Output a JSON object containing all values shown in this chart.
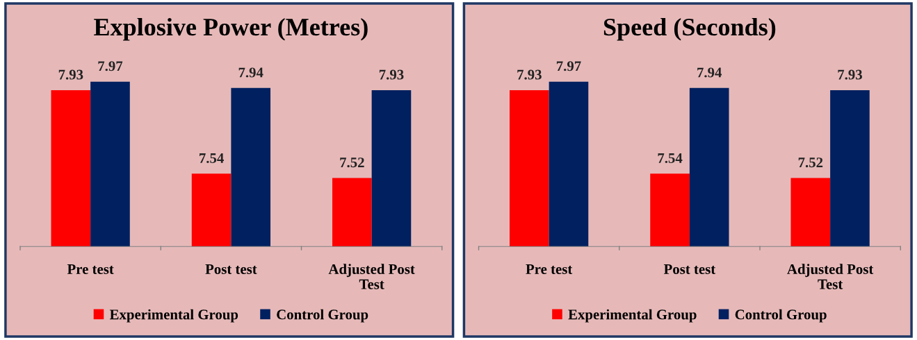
{
  "chart_data": [
    {
      "type": "bar",
      "title": "Explosive Power (Metres)",
      "categories": [
        "Pre test",
        "Post test",
        "Adjusted Post Test"
      ],
      "series": [
        {
          "name": "Experimental Group",
          "color": "#ff0000",
          "values": [
            7.93,
            7.54,
            7.52
          ]
        },
        {
          "name": "Control Group",
          "color": "#002060",
          "values": [
            7.97,
            7.94,
            7.93
          ]
        }
      ],
      "ylim": [
        7.2,
        7.97
      ],
      "tick_labels": "x",
      "data_labels": true,
      "legend": "bottom",
      "grid": false
    },
    {
      "type": "bar",
      "title": "Speed (Seconds)",
      "categories": [
        "Pre test",
        "Post test",
        "Adjusted Post Test"
      ],
      "series": [
        {
          "name": "Experimental Group",
          "color": "#ff0000",
          "values": [
            7.93,
            7.54,
            7.52
          ]
        },
        {
          "name": "Control Group",
          "color": "#002060",
          "values": [
            7.97,
            7.94,
            7.93
          ]
        }
      ],
      "ylim": [
        7.2,
        7.97
      ],
      "tick_labels": "x",
      "data_labels": true,
      "legend": "bottom",
      "grid": false
    }
  ]
}
